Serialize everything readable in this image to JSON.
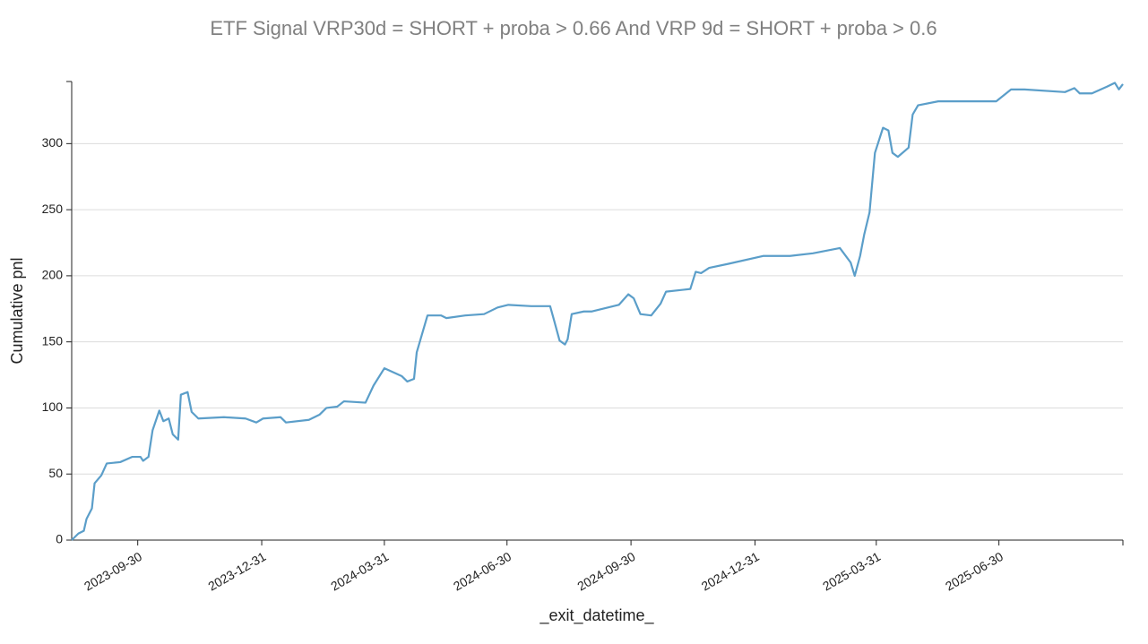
{
  "chart_data": {
    "type": "line",
    "title": "ETF Signal VRP30d = SHORT + proba > 0.66 And VRP 9d = SHORT + proba > 0.6",
    "x_label": "_exit_datetime_",
    "y_label": "Cumulative pnl",
    "xlim": [
      "2023-08-12",
      "2025-09-30"
    ],
    "xticks": [
      "2023-09-30",
      "2023-12-31",
      "2024-03-31",
      "2024-06-30",
      "2024-09-30",
      "2024-12-31",
      "2025-03-31",
      "2025-06-30"
    ],
    "ylim": [
      0,
      347
    ],
    "yticks": [
      0,
      50,
      100,
      150,
      200,
      250,
      300
    ],
    "grid": true,
    "series": [
      {
        "name": "Cumulative pnl",
        "color": "#5b9ec9",
        "x": [
          "2023-08-12",
          "2023-08-17",
          "2023-08-21",
          "2023-08-23",
          "2023-08-27",
          "2023-08-29",
          "2023-09-03",
          "2023-09-07",
          "2023-09-17",
          "2023-09-26",
          "2023-10-02",
          "2023-10-04",
          "2023-10-08",
          "2023-10-11",
          "2023-10-16",
          "2023-10-19",
          "2023-10-23",
          "2023-10-26",
          "2023-10-30",
          "2023-11-01",
          "2023-11-06",
          "2023-11-09",
          "2023-11-14",
          "2023-12-03",
          "2023-12-19",
          "2023-12-27",
          "2024-01-01",
          "2024-01-14",
          "2024-01-18",
          "2024-02-04",
          "2024-02-12",
          "2024-02-17",
          "2024-02-25",
          "2024-03-01",
          "2024-03-17",
          "2024-03-23",
          "2024-03-31",
          "2024-04-13",
          "2024-04-17",
          "2024-04-22",
          "2024-04-24",
          "2024-04-28",
          "2024-05-02",
          "2024-05-12",
          "2024-05-16",
          "2024-05-30",
          "2024-06-13",
          "2024-06-23",
          "2024-07-01",
          "2024-07-18",
          "2024-08-01",
          "2024-08-04",
          "2024-08-08",
          "2024-08-12",
          "2024-08-14",
          "2024-08-17",
          "2024-08-26",
          "2024-09-01",
          "2024-09-21",
          "2024-09-28",
          "2024-10-02",
          "2024-10-07",
          "2024-10-15",
          "2024-10-22",
          "2024-10-26",
          "2024-11-13",
          "2024-11-17",
          "2024-11-21",
          "2024-11-27",
          "2024-12-11",
          "2025-01-06",
          "2025-01-26",
          "2025-02-12",
          "2025-03-04",
          "2025-03-12",
          "2025-03-15",
          "2025-03-19",
          "2025-03-22",
          "2025-03-26",
          "2025-03-30",
          "2025-04-05",
          "2025-04-09",
          "2025-04-12",
          "2025-04-16",
          "2025-04-24",
          "2025-04-27",
          "2025-05-01",
          "2025-05-16",
          "2025-06-28",
          "2025-07-09",
          "2025-07-19",
          "2025-08-18",
          "2025-08-25",
          "2025-08-29",
          "2025-09-07",
          "2025-09-18",
          "2025-09-24",
          "2025-09-27",
          "2025-09-30"
        ],
        "values": [
          0,
          5,
          7,
          16,
          24,
          43,
          49,
          58,
          59,
          63,
          63,
          60,
          63,
          83,
          98,
          90,
          92,
          80,
          76,
          110,
          112,
          97,
          92,
          93,
          92,
          89,
          92,
          93,
          89,
          91,
          95,
          100,
          101,
          105,
          104,
          117,
          130,
          124,
          120,
          122,
          142,
          156,
          170,
          170,
          168,
          170,
          171,
          176,
          178,
          177,
          177,
          166,
          151,
          148,
          152,
          171,
          173,
          173,
          178,
          186,
          183,
          171,
          170,
          179,
          188,
          190,
          203,
          202,
          206,
          209,
          215,
          215,
          217,
          221,
          210,
          200,
          215,
          231,
          248,
          293,
          312,
          310,
          293,
          290,
          297,
          322,
          329,
          332,
          332,
          341,
          341,
          339,
          342,
          338,
          338,
          343,
          346,
          341,
          345
        ]
      }
    ]
  }
}
